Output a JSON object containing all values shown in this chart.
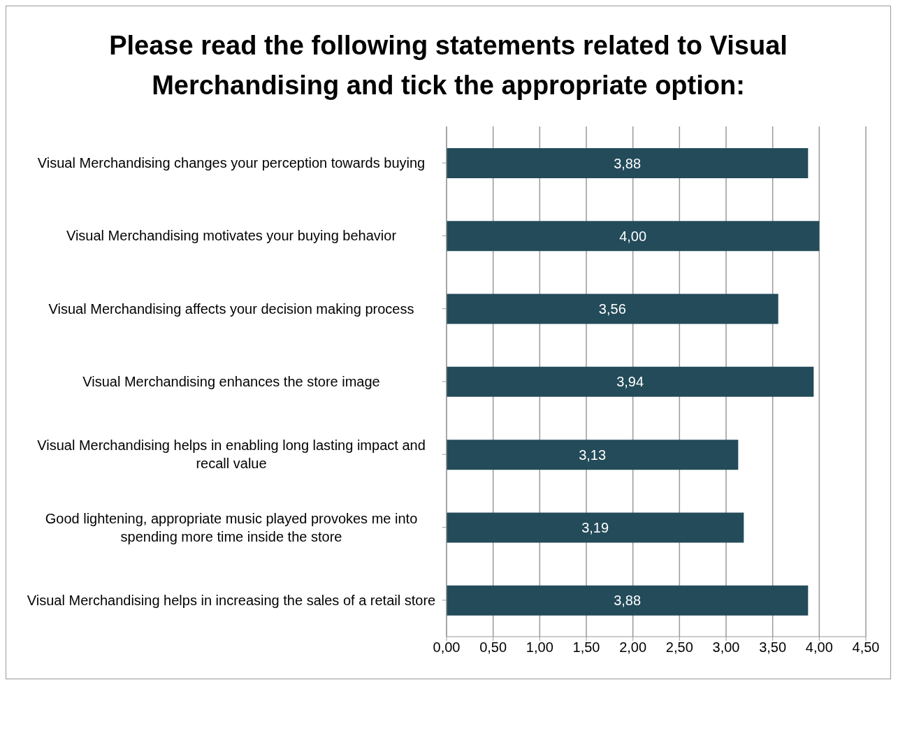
{
  "chart_data": {
    "type": "bar",
    "orientation": "horizontal",
    "title": "Please read the following statements related to Visual Merchandising and tick the appropriate option:",
    "categories": [
      "Visual Merchandising changes your perception towards buying",
      "Visual Merchandising motivates your buying behavior",
      "Visual Merchandising affects your decision making process",
      "Visual Merchandising enhances the store image",
      "Visual Merchandising helps in enabling long lasting impact and recall value",
      "Good lightening, appropriate music played provokes me into spending more time inside the store",
      "Visual Merchandising helps in increasing the sales of a retail store"
    ],
    "values": [
      3.88,
      4.0,
      3.56,
      3.94,
      3.13,
      3.19,
      3.88
    ],
    "value_labels": [
      "3,88",
      "4,00",
      "3,56",
      "3,94",
      "3,13",
      "3,19",
      "3,88"
    ],
    "color": "#234b5a",
    "xlim": [
      0,
      4.5
    ],
    "xticks": [
      {
        "value": 0,
        "label": "0,00"
      },
      {
        "value": 0.5,
        "label": "0,50"
      },
      {
        "value": 1,
        "label": "1,00"
      },
      {
        "value": 1.5,
        "label": "1,50"
      },
      {
        "value": 2,
        "label": "2,00"
      },
      {
        "value": 2.5,
        "label": "2,50"
      },
      {
        "value": 3,
        "label": "3,00"
      },
      {
        "value": 3.5,
        "label": "3,50"
      },
      {
        "value": 4,
        "label": "4,00"
      },
      {
        "value": 4.5,
        "label": "4,50"
      }
    ],
    "grid": "x",
    "legend": false
  }
}
